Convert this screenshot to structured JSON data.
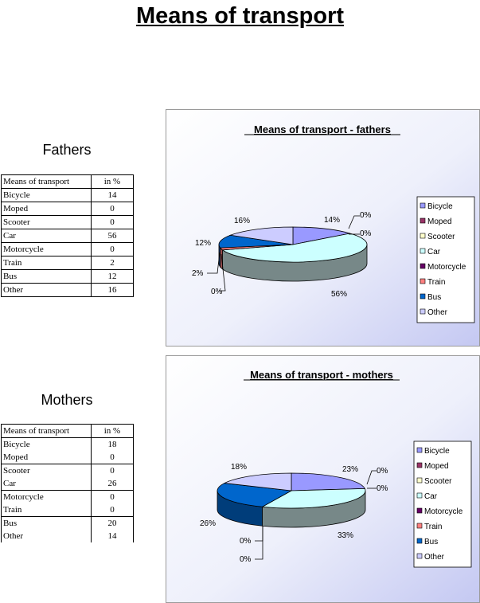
{
  "page": {
    "title": "Means of transport"
  },
  "fathers": {
    "heading": "Fathers",
    "table": {
      "headers": [
        "Means of transport",
        "in %"
      ],
      "rows": [
        [
          "Bicycle",
          "14"
        ],
        [
          "Moped",
          "0"
        ],
        [
          "Scooter",
          "0"
        ],
        [
          "Car",
          "56"
        ],
        [
          "Motorcycle",
          "0"
        ],
        [
          "Train",
          "2"
        ],
        [
          "Bus",
          "12"
        ],
        [
          "Other",
          "16"
        ]
      ]
    }
  },
  "mothers": {
    "heading": "Mothers",
    "table": {
      "headers": [
        "Means of transport",
        "in %"
      ],
      "rows": [
        [
          "Bicycle",
          "18"
        ],
        [
          "Moped",
          "0"
        ],
        [
          "Scooter",
          "0"
        ],
        [
          "Car",
          "26"
        ],
        [
          "Motorcycle",
          "0"
        ],
        [
          "Train",
          "0"
        ],
        [
          "Bus",
          "20"
        ],
        [
          "Other",
          "14"
        ]
      ]
    }
  },
  "colors": {
    "Bicycle": "#9999ff",
    "Moped": "#993366",
    "Scooter": "#ffffcc",
    "Car": "#ccffff",
    "Motorcycle": "#660066",
    "Train": "#ff8080",
    "Bus": "#0066cc",
    "Other": "#ccccff",
    "side": "#778888"
  },
  "chart_data": [
    {
      "type": "pie",
      "title": "Means of transport - fathers",
      "categories": [
        "Bicycle",
        "Moped",
        "Scooter",
        "Car",
        "Motorcycle",
        "Train",
        "Bus",
        "Other"
      ],
      "values": [
        14,
        0,
        0,
        56,
        0,
        2,
        12,
        16
      ],
      "labels": [
        "14%",
        "0%",
        "0%",
        "56%",
        "0%",
        "2%",
        "12%",
        "16%"
      ],
      "legend": "right",
      "three_d": true
    },
    {
      "type": "pie",
      "title": "Means of transport - mothers",
      "categories": [
        "Bicycle",
        "Moped",
        "Scooter",
        "Car",
        "Motorcycle",
        "Train",
        "Bus",
        "Other"
      ],
      "values": [
        18,
        0,
        0,
        26,
        0,
        0,
        20,
        14
      ],
      "labels": [
        "23%",
        "0%",
        "0%",
        "33%",
        "0%",
        "0%",
        "26%",
        "18%"
      ],
      "legend": "right",
      "three_d": true
    }
  ]
}
